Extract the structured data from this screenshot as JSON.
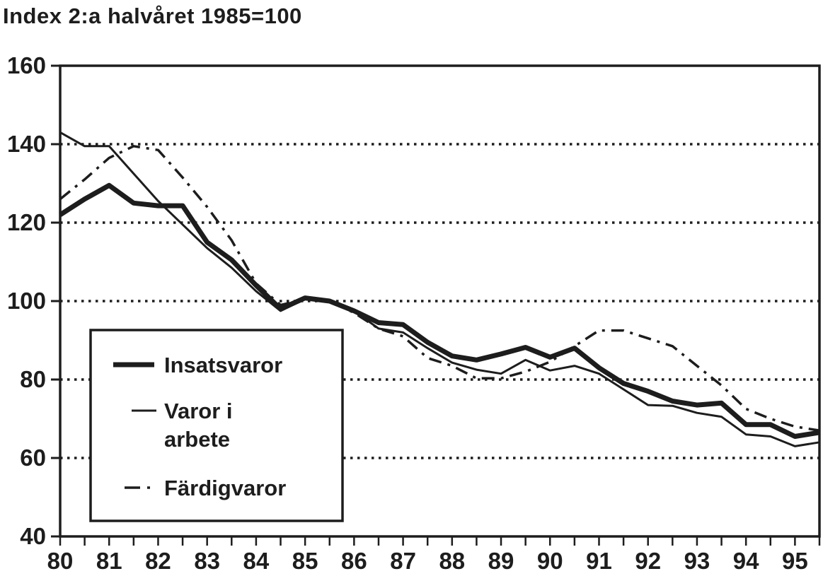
{
  "title": "Index 2:a halvåret 1985=100",
  "colors": {
    "ink": "#1d1d1d",
    "background": "#ffffff"
  },
  "chart_data": {
    "type": "line",
    "title": "Index 2:a halvåret 1985=100",
    "xlabel": "",
    "ylabel": "",
    "x_labels": [
      "80",
      "81",
      "82",
      "83",
      "84",
      "85",
      "86",
      "87",
      "88",
      "89",
      "90",
      "91",
      "92",
      "93",
      "94",
      "95"
    ],
    "points_per_year": 2,
    "x_start": "1980 H1",
    "x_end": "1995 H2",
    "y_axis": {
      "min": 40,
      "max": 160,
      "ticks": [
        160,
        140,
        120,
        100,
        80,
        60,
        40
      ],
      "gridlines": [
        140,
        120,
        100,
        80,
        60
      ],
      "grid_style": "dotted"
    },
    "legend_position": "left-middle",
    "series": [
      {
        "name": "Insatsvaror",
        "legend_lines": [
          "Insatsvaror"
        ],
        "style": "thick-solid",
        "values": [
          122,
          126,
          129.5,
          125,
          124.3,
          124.3,
          115,
          110.5,
          104,
          98,
          100.8,
          100,
          97.5,
          94.5,
          94,
          89.5,
          86,
          85,
          86.5,
          88.2,
          85.7,
          88,
          83,
          79,
          77,
          74.5,
          73.5,
          74,
          68.5,
          68.5,
          65.5,
          66.5
        ]
      },
      {
        "name": "Varor i arbete",
        "legend_lines": [
          "Varor i",
          "arbete"
        ],
        "style": "thin-solid",
        "values": [
          143,
          139.5,
          139.5,
          132.5,
          125.5,
          119.5,
          113.5,
          108.5,
          102.5,
          97.5,
          100.5,
          100,
          97.5,
          93,
          92,
          88,
          84.3,
          82.5,
          81.5,
          85,
          82.3,
          83.5,
          81.5,
          77.5,
          73.5,
          73.3,
          71.5,
          70.5,
          66,
          65.5,
          63,
          64
        ]
      },
      {
        "name": "Färdigvaror",
        "legend_lines": [
          "Färdigvaror"
        ],
        "style": "dash-dot",
        "values": [
          126,
          131,
          136.5,
          139.5,
          138.5,
          131.5,
          124,
          115.5,
          104.5,
          99,
          100.5,
          100,
          97,
          93,
          91,
          85.5,
          83.5,
          80.3,
          80.3,
          82,
          84.5,
          88.5,
          92.5,
          92.5,
          90.5,
          88.5,
          83.5,
          78.5,
          72.5,
          70,
          68,
          67
        ]
      }
    ]
  }
}
